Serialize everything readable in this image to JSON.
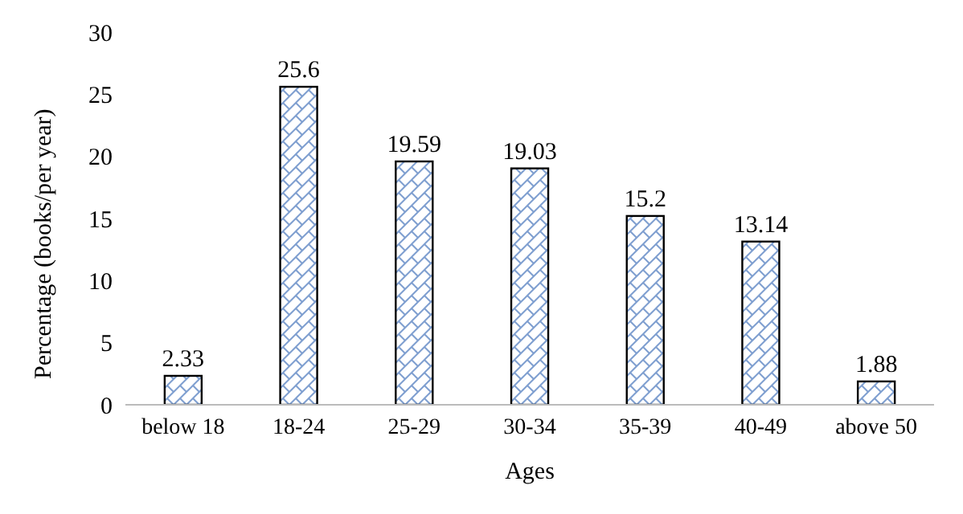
{
  "chart_data": {
    "type": "bar",
    "xlabel": "Ages",
    "ylabel": "Percentage (books/per year)",
    "categories": [
      "below 18",
      "18-24",
      "25-29",
      "30-34",
      "35-39",
      "40-49",
      "above 50"
    ],
    "values": [
      2.33,
      25.6,
      19.59,
      19.03,
      15.2,
      13.14,
      1.88
    ],
    "color": "#7f9fd0",
    "ylim": [
      0,
      30
    ],
    "yticks": [
      0,
      5,
      10,
      15,
      20,
      25,
      30
    ],
    "grid": false,
    "data_labels": true
  }
}
